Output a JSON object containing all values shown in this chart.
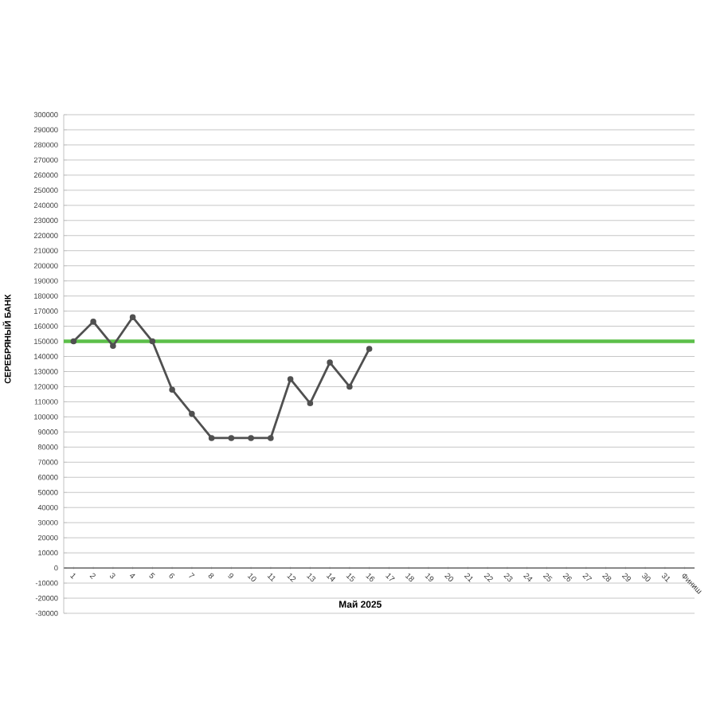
{
  "chart_data": {
    "type": "line",
    "xlabel": "Май 2025",
    "ylabel": "СЕРЕБРЯНЫЙ БАНК",
    "categories": [
      "1",
      "2",
      "3",
      "4",
      "5",
      "6",
      "7",
      "8",
      "9",
      "10",
      "11",
      "12",
      "13",
      "14",
      "15",
      "16",
      "17",
      "18",
      "19",
      "20",
      "21",
      "22",
      "23",
      "24",
      "25",
      "26",
      "27",
      "28",
      "29",
      "30",
      "31",
      "Финиш"
    ],
    "series": [
      {
        "color": "#505050",
        "values": [
          150000,
          163000,
          147000,
          166000,
          150000,
          118000,
          102000,
          86000,
          86000,
          86000,
          86000,
          125000,
          109000,
          136000,
          120000,
          145000,
          null,
          null,
          null,
          null,
          null,
          null,
          null,
          null,
          null,
          null,
          null,
          null,
          null,
          null,
          null,
          null
        ]
      }
    ],
    "ylim": [
      -30000,
      300000
    ],
    "yticks": [
      -30000,
      -20000,
      -10000,
      0,
      10000,
      20000,
      30000,
      40000,
      50000,
      60000,
      70000,
      80000,
      90000,
      100000,
      110000,
      120000,
      130000,
      140000,
      150000,
      160000,
      170000,
      180000,
      190000,
      200000,
      210000,
      220000,
      230000,
      240000,
      250000,
      260000,
      270000,
      280000,
      290000,
      300000
    ],
    "ref_lines": [
      {
        "axis": "y",
        "value": 150000,
        "color": "#5cbf4a"
      }
    ],
    "grid": "y",
    "marker": "circle",
    "line_style": "solid"
  }
}
